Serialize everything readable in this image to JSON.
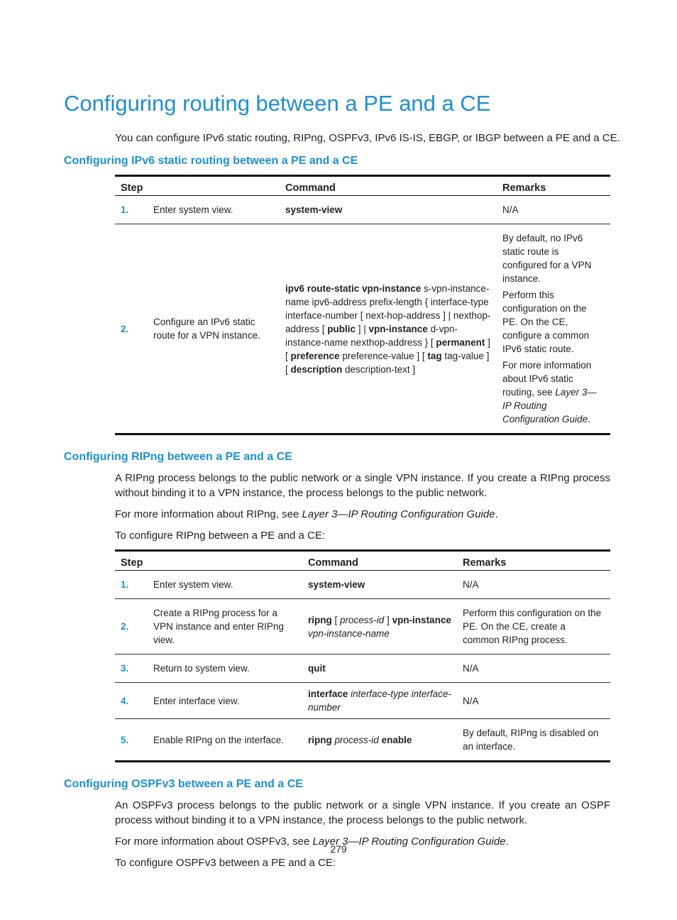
{
  "title": "Configuring routing between a PE and a CE",
  "intro": "You can configure IPv6 static routing, RIPng, OSPFv3, IPv6 IS-IS, EBGP, or IBGP between a PE and a CE.",
  "sections": [
    {
      "heading": "Configuring IPv6 static routing between a PE and a CE",
      "paragraphs": [],
      "table": {
        "headers": [
          "Step",
          "Command",
          "Remarks"
        ],
        "rows": [
          {
            "step": "1.",
            "description": "Enter system view.",
            "command": [
              [
                {
                  "b": "system-view"
                }
              ]
            ],
            "remarks": [
              [
                "N/A"
              ]
            ]
          },
          {
            "step": "2.",
            "description": "Configure an IPv6 static route for a VPN instance.",
            "command": [
              [
                {
                  "b": "ipv6 route-static vpn-instance"
                },
                " s-vpn-instance-name ipv6-address prefix-length { interface-type interface-number [ next-hop-address ] | nexthop-address [ ",
                {
                  "b": "public"
                },
                " ] | ",
                {
                  "b": "vpn-instance"
                },
                " d-vpn-instance-name nexthop-address } [ ",
                {
                  "b": "permanent"
                },
                " ] [ ",
                {
                  "b": "preference"
                },
                " preference-value ] [ ",
                {
                  "b": "tag"
                },
                " tag-value ] [ ",
                {
                  "b": "description"
                },
                " description-text ]"
              ]
            ],
            "remarks": [
              [
                "By default, no IPv6 static route is configured for a VPN instance."
              ],
              [
                "Perform this configuration on the PE. On the CE, configure a common IPv6 static route."
              ],
              [
                "For more information about IPv6 static routing, see ",
                {
                  "i": "Layer 3—IP Routing Configuration Guide"
                },
                "."
              ]
            ]
          }
        ]
      }
    },
    {
      "heading": "Configuring RIPng between a PE and a CE",
      "paragraphs": [
        [
          "A RIPng process belongs to the public network or a single VPN instance. If you create a RIPng process without binding it to a VPN instance, the process belongs to the public network."
        ],
        [
          "For more information about RIPng, see ",
          {
            "i": "Layer 3—IP Routing Configuration Guide"
          },
          "."
        ],
        [
          "To configure RIPng between a PE and a CE:"
        ]
      ],
      "table": {
        "headers": [
          "Step",
          "Command",
          "Remarks"
        ],
        "rows": [
          {
            "step": "1.",
            "description": "Enter system view.",
            "command": [
              [
                {
                  "b": "system-view"
                }
              ]
            ],
            "remarks": [
              [
                "N/A"
              ]
            ]
          },
          {
            "step": "2.",
            "description": "Create a RIPng process for a VPN instance and enter RIPng view.",
            "command": [
              [
                {
                  "b": "ripng"
                },
                " [ ",
                {
                  "i": "process-id"
                },
                " ] ",
                {
                  "b": "vpn-instance"
                },
                " ",
                {
                  "i": "vpn-instance-name"
                }
              ]
            ],
            "remarks": [
              [
                "Perform this configuration on the PE. On the CE, create a common RIPng process."
              ]
            ]
          },
          {
            "step": "3.",
            "description": "Return to system view.",
            "command": [
              [
                {
                  "b": "quit"
                }
              ]
            ],
            "remarks": [
              [
                "N/A"
              ]
            ]
          },
          {
            "step": "4.",
            "description": "Enter interface view.",
            "command": [
              [
                {
                  "b": "interface"
                },
                " ",
                {
                  "i": "interface-type interface-number"
                }
              ]
            ],
            "remarks": [
              [
                "N/A"
              ]
            ]
          },
          {
            "step": "5.",
            "description": "Enable RIPng on the interface.",
            "command": [
              [
                {
                  "b": "ripng"
                },
                " ",
                {
                  "i": "process-id"
                },
                " ",
                {
                  "b": "enable"
                }
              ]
            ],
            "remarks": [
              [
                "By default, RIPng is disabled on an interface."
              ]
            ]
          }
        ]
      }
    },
    {
      "heading": "Configuring OSPFv3 between a PE and a CE",
      "paragraphs": [
        [
          "An OSPFv3 process belongs to the public network or a single VPN instance. If you create an OSPF process without binding it to a VPN instance, the process belongs to the public network."
        ],
        [
          "For more information about OSPFv3, see ",
          {
            "i": "Layer 3—IP Routing Configuration Guide"
          },
          "."
        ],
        [
          "To configure OSPFv3 between a PE and a CE:"
        ]
      ],
      "table": null
    }
  ],
  "page_number": "279"
}
